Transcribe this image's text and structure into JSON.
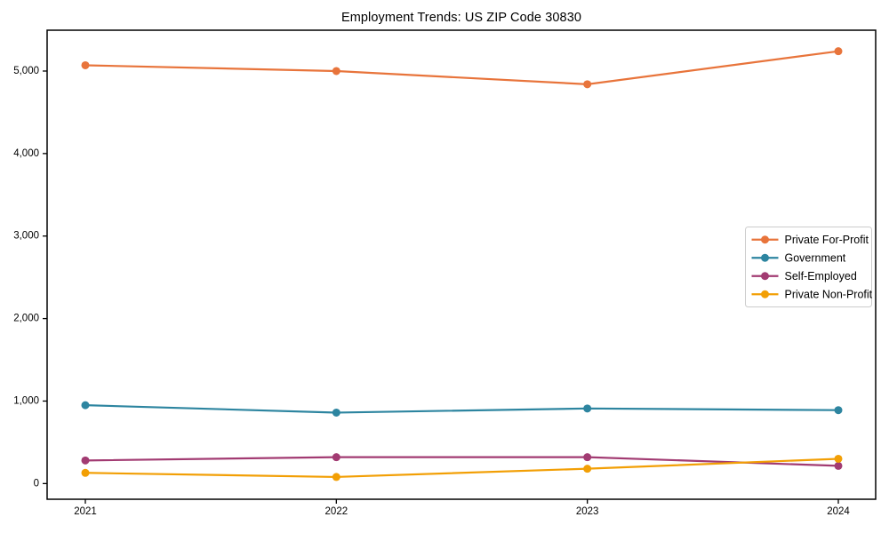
{
  "chart_data": {
    "type": "line",
    "title": "Employment Trends: US ZIP Code 30830",
    "categories": [
      "2021",
      "2022",
      "2023",
      "2024"
    ],
    "series": [
      {
        "name": "Private For-Profit",
        "color": "#E8743B",
        "values": [
          5070,
          5000,
          4840,
          5240
        ]
      },
      {
        "name": "Government",
        "color": "#2D85A0",
        "values": [
          950,
          860,
          910,
          890
        ]
      },
      {
        "name": "Self-Employed",
        "color": "#A23B72",
        "values": [
          280,
          320,
          320,
          215
        ]
      },
      {
        "name": "Private Non-Profit",
        "color": "#F29F05",
        "values": [
          130,
          80,
          180,
          300
        ]
      }
    ],
    "xlabel": "",
    "ylabel": "",
    "ylim": [
      -190,
      5495
    ],
    "yticks": [
      0,
      1000,
      2000,
      3000,
      4000,
      5000
    ],
    "ytick_labels": [
      "0",
      "1,000",
      "2,000",
      "3,000",
      "4,000",
      "5,000"
    ],
    "grid": false,
    "legend_position": "center right",
    "colors": {
      "axis": "#000000",
      "legend_border": "#cccccc",
      "background": "#ffffff"
    }
  }
}
